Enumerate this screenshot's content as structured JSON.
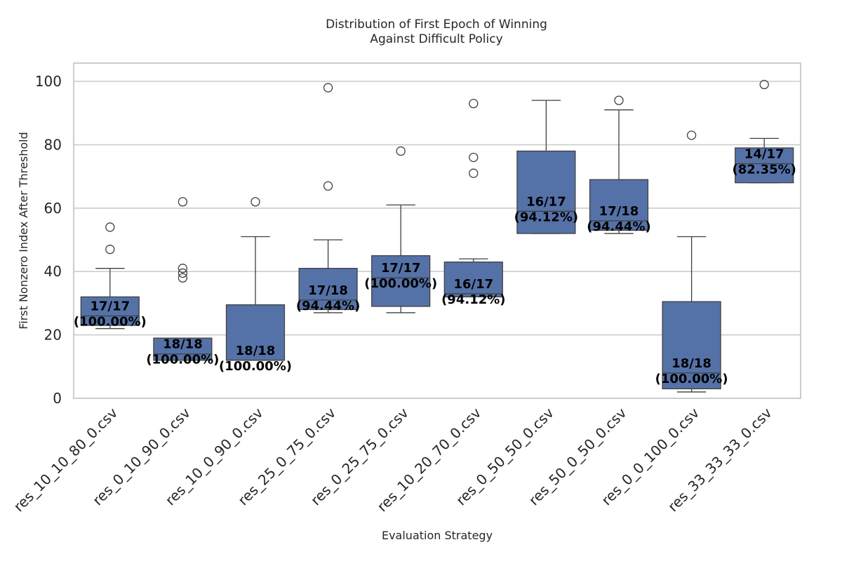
{
  "chart_data": {
    "type": "box",
    "title": "Distribution of First Epoch of Winning\nAgainst Difficult Policy",
    "xlabel": "Evaluation Strategy",
    "ylabel": "First Nonzero Index After Threshold",
    "ylim": [
      0,
      105
    ],
    "yticks": [
      0,
      20,
      40,
      60,
      80,
      100
    ],
    "grid": "horizontal",
    "box_color": "#5572a8",
    "categories": [
      "res_10_10_80_0.csv",
      "res_0_10_90_0.csv",
      "res_10_0_90_0.csv",
      "res_25_0_75_0.csv",
      "res_0_25_75_0.csv",
      "res_10_20_70_0.csv",
      "res_0_50_50_0.csv",
      "res_50_0_50_0.csv",
      "res_0_0_100_0.csv",
      "res_33_33_33_0.csv"
    ],
    "boxes": [
      {
        "whisker_low": 22,
        "q1": 23,
        "median": 26,
        "q3": 32,
        "whisker_high": 41,
        "outliers": [
          47,
          54
        ],
        "annotation": [
          "17/17",
          "(100.00%)"
        ]
      },
      {
        "whisker_low": 12,
        "q1": 12,
        "median": 14,
        "q3": 19,
        "whisker_high": 19,
        "outliers": [
          38,
          39.5,
          41,
          62
        ],
        "annotation": [
          "18/18",
          "(100.00%)"
        ]
      },
      {
        "whisker_low": 12,
        "q1": 12,
        "median": 12,
        "q3": 29.5,
        "whisker_high": 51,
        "outliers": [
          62
        ],
        "annotation": [
          "18/18",
          "(100.00%)"
        ]
      },
      {
        "whisker_low": 27,
        "q1": 28,
        "median": 31,
        "q3": 41,
        "whisker_high": 50,
        "outliers": [
          67,
          98
        ],
        "annotation": [
          "17/18",
          "(94.44%)"
        ]
      },
      {
        "whisker_low": 27,
        "q1": 29,
        "median": 38,
        "q3": 45,
        "whisker_high": 61,
        "outliers": [
          78
        ],
        "annotation": [
          "17/17",
          "(100.00%)"
        ]
      },
      {
        "whisker_low": 32,
        "q1": 32,
        "median": 33,
        "q3": 43,
        "whisker_high": 44,
        "outliers": [
          71,
          76,
          93
        ],
        "annotation": [
          "16/17",
          "(94.12%)"
        ]
      },
      {
        "whisker_low": 52,
        "q1": 52,
        "median": 59,
        "q3": 78,
        "whisker_high": 94,
        "outliers": [],
        "annotation": [
          "16/17",
          "(94.12%)"
        ]
      },
      {
        "whisker_low": 52,
        "q1": 53,
        "median": 56,
        "q3": 69,
        "whisker_high": 91,
        "outliers": [
          94
        ],
        "annotation": [
          "17/18",
          "(94.44%)"
        ]
      },
      {
        "whisker_low": 2,
        "q1": 3,
        "median": 8,
        "q3": 30.5,
        "whisker_high": 51,
        "outliers": [
          83
        ],
        "annotation": [
          "18/18",
          "(100.00%)"
        ]
      },
      {
        "whisker_low": 68,
        "q1": 68,
        "median": 74,
        "q3": 79,
        "whisker_high": 82,
        "outliers": [
          99
        ],
        "annotation": [
          "14/17",
          "(82.35%)"
        ]
      }
    ]
  }
}
